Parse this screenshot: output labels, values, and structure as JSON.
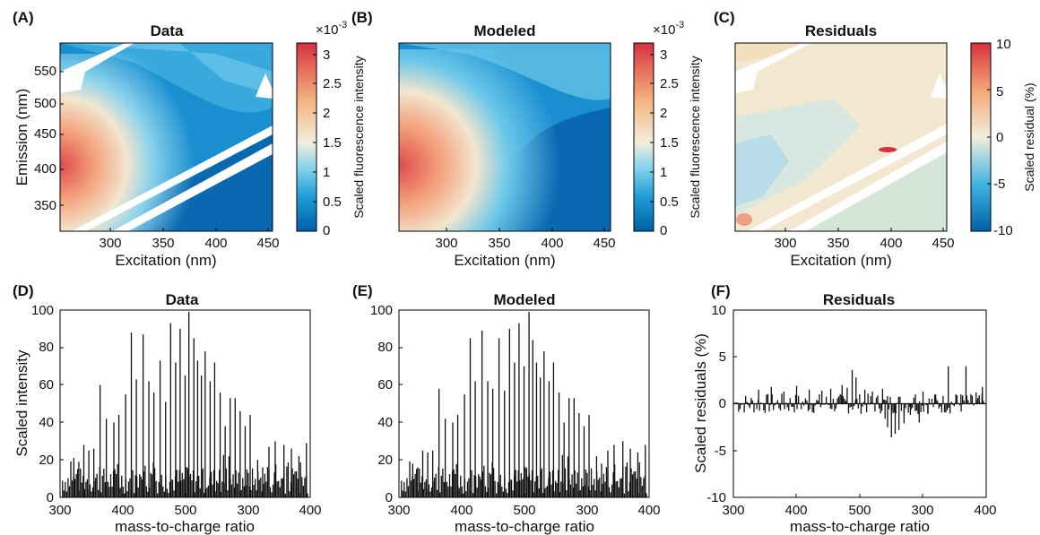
{
  "chart_data": [
    {
      "type": "heatmap",
      "panel": "(A)",
      "title": "Data",
      "xlabel": "Excitation (nm)",
      "ylabel": "Emission (nm)",
      "xticks": [
        "300",
        "350",
        "400",
        "450"
      ],
      "yticks": [
        "350",
        "400",
        "450",
        "500",
        "550"
      ],
      "xlim": [
        260,
        450
      ],
      "ylim": [
        300,
        595
      ],
      "colorbar": {
        "label": "Scaled fluorescence intensity",
        "exponent_base": "×10",
        "exponent_power": "-3",
        "ticks": [
          "0",
          "0.5",
          "1",
          "1.5",
          "2",
          "2.5",
          "3"
        ],
        "range": [
          0,
          3.2
        ],
        "colormap": [
          "#0060a8",
          "#1fa3dc",
          "#9fdbef",
          "#f2ecd6",
          "#f6b583",
          "#d9363e"
        ]
      }
    },
    {
      "type": "heatmap",
      "panel": "(B)",
      "title": "Modeled",
      "xlabel": "Excitation (nm)",
      "xticks": [
        "300",
        "350",
        "400",
        "450"
      ],
      "xlim": [
        260,
        450
      ],
      "ylim": [
        300,
        595
      ],
      "colorbar": {
        "label": "Scaled fluorescence intensity",
        "exponent_base": "×10",
        "exponent_power": "-3",
        "ticks": [
          "0",
          "0.5",
          "1",
          "1.5",
          "2",
          "2.5",
          "3"
        ],
        "range": [
          0,
          3.2
        ]
      }
    },
    {
      "type": "heatmap",
      "panel": "(C)",
      "title": "Residuals",
      "xlabel": "Excitation (nm)",
      "xticks": [
        "300",
        "350",
        "400",
        "450"
      ],
      "xlim": [
        260,
        450
      ],
      "ylim": [
        300,
        595
      ],
      "colorbar": {
        "label": "Scaled residual (%)",
        "ticks": [
          "10",
          "5",
          "0",
          "-5",
          "-10"
        ],
        "range": [
          -10,
          10
        ]
      }
    },
    {
      "type": "bar",
      "panel": "(D)",
      "title": "Data",
      "xlabel": "mass-to-charge ratio",
      "ylabel": "Scaled intensity",
      "xticks": [
        "300",
        "400",
        "500",
        "300",
        "400"
      ],
      "yticks": [
        "0",
        "20",
        "40",
        "60",
        "80",
        "100"
      ],
      "ylim": [
        0,
        100
      ],
      "peaks": [
        [
          0.055,
          21
        ],
        [
          0.075,
          19
        ],
        [
          0.095,
          28
        ],
        [
          0.115,
          25
        ],
        [
          0.135,
          26
        ],
        [
          0.16,
          60
        ],
        [
          0.185,
          42
        ],
        [
          0.215,
          40
        ],
        [
          0.235,
          44
        ],
        [
          0.262,
          55
        ],
        [
          0.285,
          88
        ],
        [
          0.305,
          63
        ],
        [
          0.332,
          87
        ],
        [
          0.355,
          62
        ],
        [
          0.375,
          56
        ],
        [
          0.4,
          73
        ],
        [
          0.422,
          51
        ],
        [
          0.442,
          93
        ],
        [
          0.462,
          72
        ],
        [
          0.48,
          90
        ],
        [
          0.5,
          65
        ],
        [
          0.515,
          99
        ],
        [
          0.535,
          85
        ],
        [
          0.55,
          73
        ],
        [
          0.565,
          65
        ],
        [
          0.58,
          78
        ],
        [
          0.6,
          62
        ],
        [
          0.618,
          72
        ],
        [
          0.64,
          56
        ],
        [
          0.66,
          38
        ],
        [
          0.68,
          53
        ],
        [
          0.7,
          53
        ],
        [
          0.72,
          46
        ],
        [
          0.74,
          38
        ],
        [
          0.76,
          44
        ],
        [
          0.79,
          20
        ],
        [
          0.81,
          16
        ],
        [
          0.835,
          27
        ],
        [
          0.86,
          30
        ],
        [
          0.895,
          28
        ],
        [
          0.925,
          26
        ],
        [
          0.955,
          22
        ],
        [
          0.985,
          29
        ]
      ]
    },
    {
      "type": "bar",
      "panel": "(E)",
      "title": "Modeled",
      "xlabel": "mass-to-charge ratio",
      "xticks": [
        "300",
        "400",
        "500",
        "300",
        "400"
      ],
      "yticks": [
        "0",
        "20",
        "40",
        "60",
        "80",
        "100"
      ],
      "ylim": [
        0,
        100
      ],
      "peaks": [
        [
          0.055,
          18
        ],
        [
          0.075,
          16
        ],
        [
          0.095,
          25
        ],
        [
          0.115,
          24
        ],
        [
          0.135,
          25
        ],
        [
          0.16,
          58
        ],
        [
          0.185,
          42
        ],
        [
          0.215,
          40
        ],
        [
          0.235,
          44
        ],
        [
          0.262,
          55
        ],
        [
          0.285,
          85
        ],
        [
          0.305,
          62
        ],
        [
          0.332,
          89
        ],
        [
          0.355,
          62
        ],
        [
          0.375,
          58
        ],
        [
          0.4,
          85
        ],
        [
          0.422,
          57
        ],
        [
          0.442,
          90
        ],
        [
          0.462,
          72
        ],
        [
          0.48,
          93
        ],
        [
          0.5,
          70
        ],
        [
          0.52,
          99
        ],
        [
          0.535,
          84
        ],
        [
          0.55,
          72
        ],
        [
          0.565,
          64
        ],
        [
          0.58,
          78
        ],
        [
          0.6,
          62
        ],
        [
          0.618,
          72
        ],
        [
          0.64,
          56
        ],
        [
          0.66,
          40
        ],
        [
          0.68,
          53
        ],
        [
          0.7,
          53
        ],
        [
          0.72,
          45
        ],
        [
          0.74,
          38
        ],
        [
          0.76,
          44
        ],
        [
          0.79,
          22
        ],
        [
          0.81,
          18
        ],
        [
          0.835,
          25
        ],
        [
          0.86,
          28
        ],
        [
          0.895,
          30
        ],
        [
          0.925,
          26
        ],
        [
          0.955,
          24
        ],
        [
          0.985,
          28
        ]
      ]
    },
    {
      "type": "bar",
      "panel": "(F)",
      "title": "Residuals",
      "xlabel": "mass-to-charge ratio",
      "ylabel": "Scaled residuals (%)",
      "xticks": [
        "300",
        "400",
        "500",
        "300",
        "400"
      ],
      "yticks": [
        "10",
        "5",
        "0",
        "-5",
        "-10"
      ],
      "ylim": [
        -10,
        10
      ],
      "peaks": [
        [
          0.1,
          1.5
        ],
        [
          0.15,
          1.8
        ],
        [
          0.2,
          1.3
        ],
        [
          0.25,
          1.9
        ],
        [
          0.3,
          1.5
        ],
        [
          0.35,
          1.4
        ],
        [
          0.385,
          1.6
        ],
        [
          0.43,
          2.0
        ],
        [
          0.45,
          1.7
        ],
        [
          0.47,
          3.6
        ],
        [
          0.485,
          2.8
        ],
        [
          0.52,
          1.5
        ],
        [
          0.55,
          1.3
        ],
        [
          0.59,
          1.6
        ],
        [
          0.6,
          -1.6
        ],
        [
          0.61,
          -2.5
        ],
        [
          0.625,
          -3.6
        ],
        [
          0.64,
          -3.2
        ],
        [
          0.655,
          -2.8
        ],
        [
          0.675,
          -2.1
        ],
        [
          0.7,
          -1.2
        ],
        [
          0.72,
          1.0
        ],
        [
          0.735,
          -2.0
        ],
        [
          0.75,
          1.3
        ],
        [
          0.77,
          -1.0
        ],
        [
          0.8,
          1.0
        ],
        [
          0.85,
          4.0
        ],
        [
          0.88,
          1.0
        ],
        [
          0.9,
          1.0
        ],
        [
          0.92,
          4.0
        ],
        [
          0.96,
          1.2
        ],
        [
          0.985,
          1.8
        ]
      ]
    }
  ]
}
